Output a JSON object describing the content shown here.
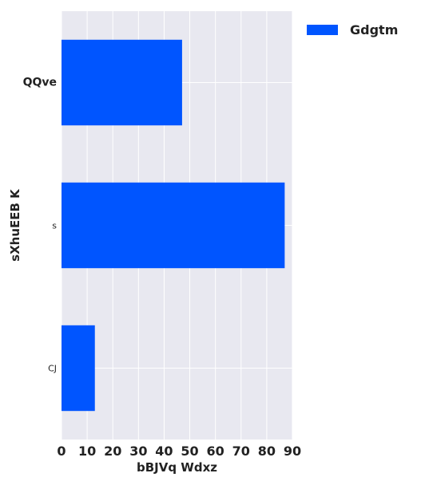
{
  "chart_data": {
    "type": "bar",
    "orientation": "horizontal",
    "categories": [
      "QQve",
      "s",
      "CJ"
    ],
    "series": [
      {
        "name": "Gdgtm",
        "values": [
          47,
          87,
          13
        ],
        "color": "#0055ff"
      }
    ],
    "xlabel": "bBJVq Wdxz",
    "ylabel": "sXhuEEB K",
    "xlim": [
      0,
      90
    ],
    "xticks": [
      0,
      10,
      20,
      30,
      40,
      50,
      60,
      70,
      80,
      90
    ],
    "grid": true,
    "background": "#e8e8f0",
    "legend": "top-right"
  }
}
